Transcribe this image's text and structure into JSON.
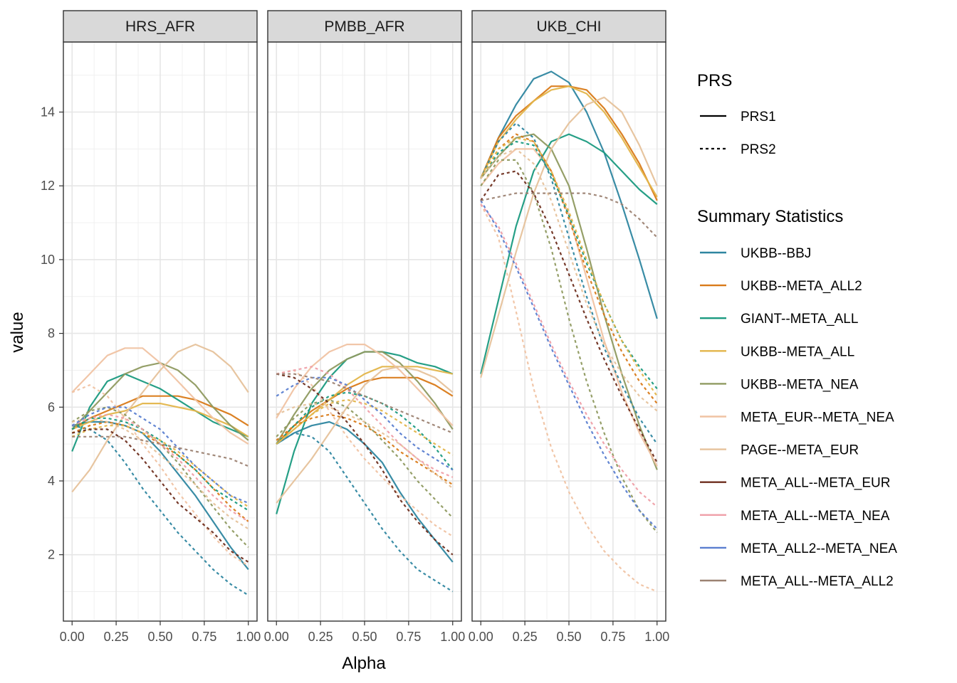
{
  "chart_data": {
    "type": "line",
    "xlabel": "Alpha",
    "ylabel": "value",
    "x": [
      0,
      0.1,
      0.2,
      0.3,
      0.4,
      0.5,
      0.6,
      0.7,
      0.8,
      0.9,
      1.0
    ],
    "xlim": [
      0,
      1
    ],
    "ylim": [
      0.2,
      15.9
    ],
    "x_ticks": [
      "0.00",
      "0.25",
      "0.50",
      "0.75",
      "1.00"
    ],
    "x_tick_values": [
      0,
      0.25,
      0.5,
      0.75,
      1.0
    ],
    "y_ticks": [
      "2",
      "4",
      "6",
      "8",
      "10",
      "12",
      "14"
    ],
    "y_tick_values": [
      2,
      4,
      6,
      8,
      10,
      12,
      14
    ],
    "grid": true,
    "legend_position": "right",
    "legend_prs": {
      "title": "PRS",
      "entries": [
        {
          "label": "PRS1",
          "dash": "solid"
        },
        {
          "label": "PRS2",
          "dash": "dashed"
        }
      ]
    },
    "legend_stats": {
      "title": "Summary Statistics",
      "entries": [
        {
          "label": "UKBB--BBJ",
          "color": "#2e86a0"
        },
        {
          "label": "UKBB--META_ALL2",
          "color": "#d97a18"
        },
        {
          "label": "GIANT--META_ALL",
          "color": "#1a9a80"
        },
        {
          "label": "UKBB--META_ALL",
          "color": "#e3b54a"
        },
        {
          "label": "UKBB--META_NEA",
          "color": "#8f9a60"
        },
        {
          "label": "META_EUR--META_NEA",
          "color": "#f0c3a3"
        },
        {
          "label": "PAGE--META_EUR",
          "color": "#e6c29b"
        },
        {
          "label": "META_ALL--META_EUR",
          "color": "#6e2e1e"
        },
        {
          "label": "META_ALL--META_NEA",
          "color": "#ef9fa8"
        },
        {
          "label": "META_ALL2--META_NEA",
          "color": "#5a7ed0"
        },
        {
          "label": "META_ALL--META_ALL2",
          "color": "#9c8272"
        }
      ]
    },
    "panels": [
      {
        "strip": "HRS_AFR",
        "series": [
          {
            "stat": 0,
            "prs": 0,
            "values": [
              5.5,
              5.6,
              5.6,
              5.5,
              5.3,
              4.8,
              4.2,
              3.6,
              2.9,
              2.2,
              1.6
            ]
          },
          {
            "stat": 1,
            "prs": 0,
            "values": [
              5.4,
              5.7,
              5.9,
              6.1,
              6.3,
              6.3,
              6.3,
              6.2,
              6.0,
              5.8,
              5.5
            ]
          },
          {
            "stat": 2,
            "prs": 0,
            "values": [
              4.8,
              6.0,
              6.7,
              6.9,
              6.7,
              6.5,
              6.2,
              5.9,
              5.6,
              5.4,
              5.2
            ]
          },
          {
            "stat": 3,
            "prs": 0,
            "values": [
              5.4,
              5.6,
              5.8,
              5.9,
              6.1,
              6.1,
              6.0,
              5.9,
              5.7,
              5.5,
              5.2
            ]
          },
          {
            "stat": 4,
            "prs": 0,
            "values": [
              5.4,
              5.9,
              6.4,
              6.9,
              7.1,
              7.2,
              7.0,
              6.6,
              6.0,
              5.5,
              5.1
            ]
          },
          {
            "stat": 5,
            "prs": 0,
            "values": [
              6.4,
              6.9,
              7.4,
              7.6,
              7.6,
              7.2,
              6.7,
              6.2,
              5.7,
              5.3,
              5.0
            ]
          },
          {
            "stat": 6,
            "prs": 0,
            "values": [
              3.7,
              4.3,
              5.1,
              5.8,
              6.4,
              7.0,
              7.5,
              7.7,
              7.5,
              7.1,
              6.4
            ]
          },
          {
            "stat": 0,
            "prs": 1,
            "values": [
              5.5,
              5.4,
              5.1,
              4.5,
              3.8,
              3.2,
              2.6,
              2.1,
              1.6,
              1.2,
              0.9
            ]
          },
          {
            "stat": 1,
            "prs": 1,
            "values": [
              5.3,
              5.5,
              5.6,
              5.5,
              5.3,
              5.0,
              4.7,
              4.3,
              3.8,
              3.3,
              2.9
            ]
          },
          {
            "stat": 2,
            "prs": 1,
            "values": [
              5.4,
              5.7,
              5.7,
              5.6,
              5.4,
              5.1,
              4.7,
              4.3,
              3.8,
              3.5,
              3.2
            ]
          },
          {
            "stat": 3,
            "prs": 1,
            "values": [
              5.2,
              5.4,
              5.5,
              5.5,
              5.3,
              5.1,
              4.8,
              4.4,
              4.0,
              3.6,
              3.3
            ]
          },
          {
            "stat": 4,
            "prs": 1,
            "values": [
              5.6,
              5.9,
              6.0,
              5.8,
              5.4,
              5.0,
              4.5,
              3.9,
              3.3,
              2.7,
              2.2
            ]
          },
          {
            "stat": 5,
            "prs": 1,
            "values": [
              6.4,
              6.6,
              6.3,
              5.7,
              5.0,
              4.4,
              3.7,
              3.1,
              2.5,
              2.0,
              1.7
            ]
          },
          {
            "stat": 6,
            "prs": 1,
            "values": [
              5.6,
              5.7,
              5.6,
              5.4,
              5.1,
              4.7,
              4.3,
              3.9,
              3.4,
              3.0,
              2.7
            ]
          },
          {
            "stat": 7,
            "prs": 1,
            "values": [
              5.3,
              5.4,
              5.4,
              5.1,
              4.6,
              4.0,
              3.4,
              3.0,
              2.6,
              2.1,
              1.8
            ]
          },
          {
            "stat": 8,
            "prs": 1,
            "values": [
              5.5,
              5.7,
              5.8,
              5.7,
              5.4,
              5.0,
              4.6,
              4.1,
              3.6,
              3.2,
              2.9
            ]
          },
          {
            "stat": 9,
            "prs": 1,
            "values": [
              5.5,
              5.8,
              6.0,
              6.0,
              5.7,
              5.4,
              4.9,
              4.4,
              4.0,
              3.6,
              3.4
            ]
          },
          {
            "stat": 10,
            "prs": 1,
            "values": [
              5.2,
              5.2,
              5.2,
              5.2,
              5.1,
              5.0,
              4.9,
              4.8,
              4.7,
              4.6,
              4.4
            ]
          }
        ]
      },
      {
        "strip": "PMBB_AFR",
        "series": [
          {
            "stat": 0,
            "prs": 0,
            "values": [
              5.0,
              5.3,
              5.5,
              5.6,
              5.4,
              5.0,
              4.5,
              3.7,
              3.0,
              2.4,
              1.8
            ]
          },
          {
            "stat": 1,
            "prs": 0,
            "values": [
              5.0,
              5.5,
              5.9,
              6.2,
              6.5,
              6.7,
              6.8,
              6.8,
              6.8,
              6.6,
              6.3
            ]
          },
          {
            "stat": 2,
            "prs": 0,
            "values": [
              3.1,
              4.8,
              6.1,
              6.8,
              7.3,
              7.5,
              7.5,
              7.4,
              7.2,
              7.1,
              6.9
            ]
          },
          {
            "stat": 3,
            "prs": 0,
            "values": [
              5.0,
              5.4,
              5.8,
              6.2,
              6.6,
              6.9,
              7.1,
              7.1,
              7.1,
              7.0,
              6.9
            ]
          },
          {
            "stat": 4,
            "prs": 0,
            "values": [
              5.0,
              5.8,
              6.5,
              7.0,
              7.3,
              7.5,
              7.5,
              7.2,
              6.7,
              6.1,
              5.4
            ]
          },
          {
            "stat": 5,
            "prs": 0,
            "values": [
              5.7,
              6.5,
              7.1,
              7.5,
              7.7,
              7.7,
              7.4,
              7.0,
              6.5,
              6.0,
              5.5
            ]
          },
          {
            "stat": 6,
            "prs": 0,
            "values": [
              3.4,
              4.0,
              4.6,
              5.3,
              6.0,
              6.6,
              7.0,
              7.1,
              7.0,
              6.8,
              6.4
            ]
          },
          {
            "stat": 0,
            "prs": 1,
            "values": [
              5.0,
              5.3,
              5.2,
              4.8,
              4.1,
              3.4,
              2.7,
              2.1,
              1.6,
              1.3,
              1.0
            ]
          },
          {
            "stat": 1,
            "prs": 1,
            "values": [
              5.1,
              5.5,
              5.7,
              5.8,
              5.7,
              5.5,
              5.2,
              4.8,
              4.5,
              4.2,
              3.9
            ]
          },
          {
            "stat": 2,
            "prs": 1,
            "values": [
              5.0,
              5.5,
              6.0,
              6.3,
              6.4,
              6.3,
              6.1,
              5.8,
              5.4,
              4.9,
              4.3
            ]
          },
          {
            "stat": 3,
            "prs": 1,
            "values": [
              5.0,
              5.4,
              5.8,
              6.1,
              6.2,
              6.1,
              5.9,
              5.6,
              5.3,
              5.0,
              4.7
            ]
          },
          {
            "stat": 4,
            "prs": 1,
            "values": [
              5.2,
              5.7,
              6.1,
              6.2,
              6.0,
              5.6,
              5.1,
              4.6,
              4.0,
              3.5,
              3.0
            ]
          },
          {
            "stat": 5,
            "prs": 1,
            "values": [
              6.9,
              7.0,
              6.6,
              5.9,
              5.2,
              4.6,
              4.1,
              3.6,
              3.2,
              2.8,
              2.5
            ]
          },
          {
            "stat": 6,
            "prs": 1,
            "values": [
              5.8,
              6.0,
              6.1,
              6.0,
              5.8,
              5.6,
              5.3,
              5.0,
              4.6,
              4.2,
              3.8
            ]
          },
          {
            "stat": 7,
            "prs": 1,
            "values": [
              6.9,
              6.8,
              6.5,
              6.1,
              5.6,
              5.0,
              4.3,
              3.5,
              2.9,
              2.4,
              2.0
            ]
          },
          {
            "stat": 8,
            "prs": 1,
            "values": [
              6.9,
              7.0,
              7.1,
              6.9,
              6.5,
              6.0,
              5.5,
              5.0,
              4.6,
              4.3,
              4.1
            ]
          },
          {
            "stat": 9,
            "prs": 1,
            "values": [
              6.3,
              6.6,
              6.8,
              6.8,
              6.6,
              6.2,
              5.8,
              5.3,
              4.9,
              4.6,
              4.3
            ]
          },
          {
            "stat": 10,
            "prs": 1,
            "values": [
              6.9,
              6.9,
              6.8,
              6.7,
              6.5,
              6.3,
              6.1,
              5.9,
              5.7,
              5.5,
              5.3
            ]
          }
        ]
      },
      {
        "strip": "UKB_CHI",
        "series": [
          {
            "stat": 0,
            "prs": 0,
            "values": [
              12.2,
              13.3,
              14.2,
              14.9,
              15.1,
              14.8,
              14.0,
              12.9,
              11.5,
              10.0,
              8.4
            ]
          },
          {
            "stat": 1,
            "prs": 0,
            "values": [
              12.2,
              13.3,
              13.9,
              14.3,
              14.7,
              14.7,
              14.6,
              14.1,
              13.4,
              12.6,
              11.6
            ]
          },
          {
            "stat": 2,
            "prs": 0,
            "values": [
              6.9,
              8.9,
              10.9,
              12.4,
              13.2,
              13.4,
              13.2,
              12.9,
              12.4,
              11.9,
              11.5
            ]
          },
          {
            "stat": 3,
            "prs": 0,
            "values": [
              12.2,
              13.2,
              13.8,
              14.3,
              14.6,
              14.7,
              14.5,
              14.0,
              13.3,
              12.5,
              11.7
            ]
          },
          {
            "stat": 4,
            "prs": 0,
            "values": [
              12.2,
              12.8,
              13.3,
              13.4,
              13.0,
              12.0,
              10.3,
              8.5,
              6.9,
              5.5,
              4.3
            ]
          },
          {
            "stat": 5,
            "prs": 0,
            "values": [
              12.0,
              12.6,
              13.0,
              13.0,
              12.4,
              11.2,
              9.5,
              7.8,
              6.4,
              5.3,
              4.4
            ]
          },
          {
            "stat": 6,
            "prs": 0,
            "values": [
              6.8,
              8.5,
              10.2,
              11.8,
              13.0,
              13.7,
              14.2,
              14.4,
              14.0,
              13.1,
              12.0
            ]
          },
          {
            "stat": 0,
            "prs": 1,
            "values": [
              12.2,
              13.2,
              13.7,
              13.3,
              12.2,
              10.6,
              9.0,
              7.6,
              6.6,
              5.7,
              5.0
            ]
          },
          {
            "stat": 1,
            "prs": 1,
            "values": [
              12.2,
              13.0,
              13.4,
              13.2,
              12.4,
              11.1,
              9.7,
              8.5,
              7.5,
              6.7,
              6.1
            ]
          },
          {
            "stat": 2,
            "prs": 1,
            "values": [
              12.2,
              12.9,
              13.2,
              13.1,
              12.3,
              11.2,
              9.9,
              8.8,
              7.8,
              7.1,
              6.5
            ]
          },
          {
            "stat": 3,
            "prs": 1,
            "values": [
              12.2,
              13.0,
              13.3,
              13.2,
              12.4,
              11.3,
              10.0,
              8.8,
              7.8,
              7.0,
              6.3
            ]
          },
          {
            "stat": 4,
            "prs": 1,
            "values": [
              12.0,
              12.7,
              12.7,
              11.8,
              10.3,
              8.4,
              6.7,
              5.3,
              4.1,
              3.2,
              2.6
            ]
          },
          {
            "stat": 5,
            "prs": 1,
            "values": [
              11.5,
              10.6,
              8.6,
              6.5,
              4.9,
              3.7,
              2.8,
              2.1,
              1.6,
              1.2,
              1.0
            ]
          },
          {
            "stat": 6,
            "prs": 1,
            "values": [
              12.2,
              12.8,
              13.0,
              12.6,
              11.6,
              10.2,
              8.8,
              7.7,
              6.9,
              6.3,
              5.9
            ]
          },
          {
            "stat": 7,
            "prs": 1,
            "values": [
              11.6,
              12.3,
              12.4,
              11.8,
              10.8,
              9.6,
              8.4,
              7.3,
              6.3,
              5.4,
              4.5
            ]
          },
          {
            "stat": 8,
            "prs": 1,
            "values": [
              11.5,
              10.9,
              9.9,
              8.8,
              7.7,
              6.7,
              5.8,
              5.0,
              4.3,
              3.7,
              3.3
            ]
          },
          {
            "stat": 9,
            "prs": 1,
            "values": [
              11.6,
              10.8,
              9.8,
              8.7,
              7.6,
              6.6,
              5.6,
              4.7,
              3.9,
              3.2,
              2.7
            ]
          },
          {
            "stat": 10,
            "prs": 1,
            "values": [
              11.6,
              11.7,
              11.8,
              11.8,
              11.8,
              11.8,
              11.8,
              11.7,
              11.5,
              11.1,
              10.6
            ]
          }
        ]
      }
    ]
  }
}
